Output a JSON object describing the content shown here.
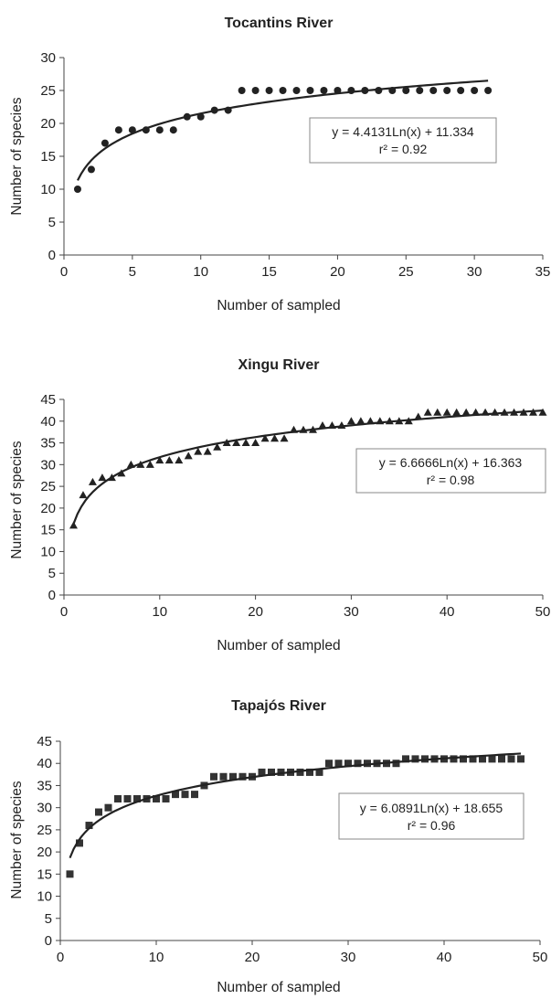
{
  "chart_data": [
    {
      "type": "scatter",
      "title": "Tocantins River",
      "xlabel": "Number of sampled",
      "ylabel": "Number of species",
      "xlim": [
        0,
        35
      ],
      "ylim": [
        0,
        30
      ],
      "xticks": [
        0,
        5,
        10,
        15,
        20,
        25,
        30,
        35
      ],
      "yticks": [
        0,
        5,
        10,
        15,
        20,
        25,
        30
      ],
      "grid": false,
      "marker": "circle",
      "series": [
        {
          "x": [
            1,
            2,
            3,
            4,
            5,
            6,
            7,
            8,
            9,
            10,
            11,
            12,
            13,
            14,
            15,
            16,
            17,
            18,
            19,
            20,
            21,
            22,
            23,
            24,
            25,
            26,
            27,
            28,
            29,
            30,
            31
          ],
          "y": [
            10,
            13,
            17,
            19,
            19,
            19,
            19,
            19,
            21,
            21,
            22,
            22,
            25,
            25,
            25,
            25,
            25,
            25,
            25,
            25,
            25,
            25,
            25,
            25,
            25,
            25,
            25,
            25,
            25,
            25,
            25
          ]
        }
      ],
      "trendline": {
        "kind": "log",
        "a": 4.4131,
        "b": 11.334,
        "x_range": [
          1,
          31
        ]
      },
      "annotation": {
        "equation": "y = 4.4131Ln(x) + 11.334",
        "r2": "r² = 0.92"
      }
    },
    {
      "type": "scatter",
      "title": "Xingu River",
      "xlabel": "Number of sampled",
      "ylabel": "Number of species",
      "xlim": [
        0,
        50
      ],
      "ylim": [
        0,
        45
      ],
      "xticks": [
        0,
        10,
        20,
        30,
        40,
        50
      ],
      "yticks": [
        0,
        5,
        10,
        15,
        20,
        25,
        30,
        35,
        40,
        45
      ],
      "grid": false,
      "marker": "triangle",
      "series": [
        {
          "x": [
            1,
            2,
            3,
            4,
            5,
            6,
            7,
            8,
            9,
            10,
            11,
            12,
            13,
            14,
            15,
            16,
            17,
            18,
            19,
            20,
            21,
            22,
            23,
            24,
            25,
            26,
            27,
            28,
            29,
            30,
            31,
            32,
            33,
            34,
            35,
            36,
            37,
            38,
            39,
            40,
            41,
            42,
            43,
            44,
            45,
            46,
            47,
            48,
            49,
            50
          ],
          "y": [
            16,
            23,
            26,
            27,
            27,
            28,
            30,
            30,
            30,
            31,
            31,
            31,
            32,
            33,
            33,
            34,
            35,
            35,
            35,
            35,
            36,
            36,
            36,
            38,
            38,
            38,
            39,
            39,
            39,
            40,
            40,
            40,
            40,
            40,
            40,
            40,
            41,
            42,
            42,
            42,
            42,
            42,
            42,
            42,
            42,
            42,
            42,
            42,
            42,
            42
          ]
        }
      ],
      "trendline": {
        "kind": "log",
        "a": 6.6666,
        "b": 16.363,
        "x_range": [
          1,
          50
        ]
      },
      "annotation": {
        "equation": "y = 6.6666Ln(x) + 16.363",
        "r2": "r² = 0.98"
      }
    },
    {
      "type": "scatter",
      "title": "Tapajós River",
      "xlabel": "Number of sampled",
      "ylabel": "Number of species",
      "xlim": [
        0,
        50
      ],
      "ylim": [
        0,
        45
      ],
      "xticks": [
        0,
        10,
        20,
        30,
        40,
        50
      ],
      "yticks": [
        0,
        5,
        10,
        15,
        20,
        25,
        30,
        35,
        40,
        45
      ],
      "grid": false,
      "marker": "square",
      "series": [
        {
          "x": [
            1,
            2,
            3,
            4,
            5,
            6,
            7,
            8,
            9,
            10,
            11,
            12,
            13,
            14,
            15,
            16,
            17,
            18,
            19,
            20,
            21,
            22,
            23,
            24,
            25,
            26,
            27,
            28,
            29,
            30,
            31,
            32,
            33,
            34,
            35,
            36,
            37,
            38,
            39,
            40,
            41,
            42,
            43,
            44,
            45,
            46,
            47,
            48
          ],
          "y": [
            15,
            22,
            26,
            29,
            30,
            32,
            32,
            32,
            32,
            32,
            32,
            33,
            33,
            33,
            35,
            37,
            37,
            37,
            37,
            37,
            38,
            38,
            38,
            38,
            38,
            38,
            38,
            40,
            40,
            40,
            40,
            40,
            40,
            40,
            40,
            41,
            41,
            41,
            41,
            41,
            41,
            41,
            41,
            41,
            41,
            41,
            41,
            41
          ]
        }
      ],
      "trendline": {
        "kind": "log",
        "a": 6.0891,
        "b": 18.655,
        "x_range": [
          1,
          48
        ]
      },
      "annotation": {
        "equation": "y = 6.0891Ln(x) + 18.655",
        "r2": "r² = 0.96"
      }
    }
  ]
}
